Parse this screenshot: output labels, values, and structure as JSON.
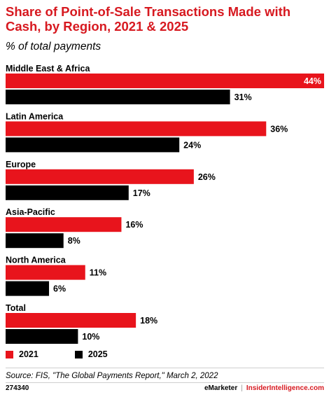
{
  "title": "Share of Point-of-Sale Transactions Made with Cash, by Region, 2021 & 2025",
  "subtitle": "% of total payments",
  "colors": {
    "2021": "#e8141c",
    "2025": "#000000",
    "title": "#d71920"
  },
  "legend": [
    "2021",
    "2025"
  ],
  "source": "Source: FIS, \"The Global Payments Report,\" March 2, 2022",
  "footer": {
    "id": "274340",
    "brand": "eMarketer",
    "site": "InsiderIntelligence.com"
  },
  "chart_data": {
    "type": "bar",
    "orientation": "horizontal",
    "categories": [
      "Middle East & Africa",
      "Latin America",
      "Europe",
      "Asia-Pacific",
      "North America",
      "Total"
    ],
    "series": [
      {
        "name": "2021",
        "values": [
          44,
          36,
          26,
          16,
          11,
          18
        ]
      },
      {
        "name": "2025",
        "values": [
          31,
          24,
          17,
          8,
          6,
          10
        ]
      }
    ],
    "value_suffix": "%",
    "xlim": [
      0,
      44
    ],
    "legend_position": "bottom-left"
  }
}
